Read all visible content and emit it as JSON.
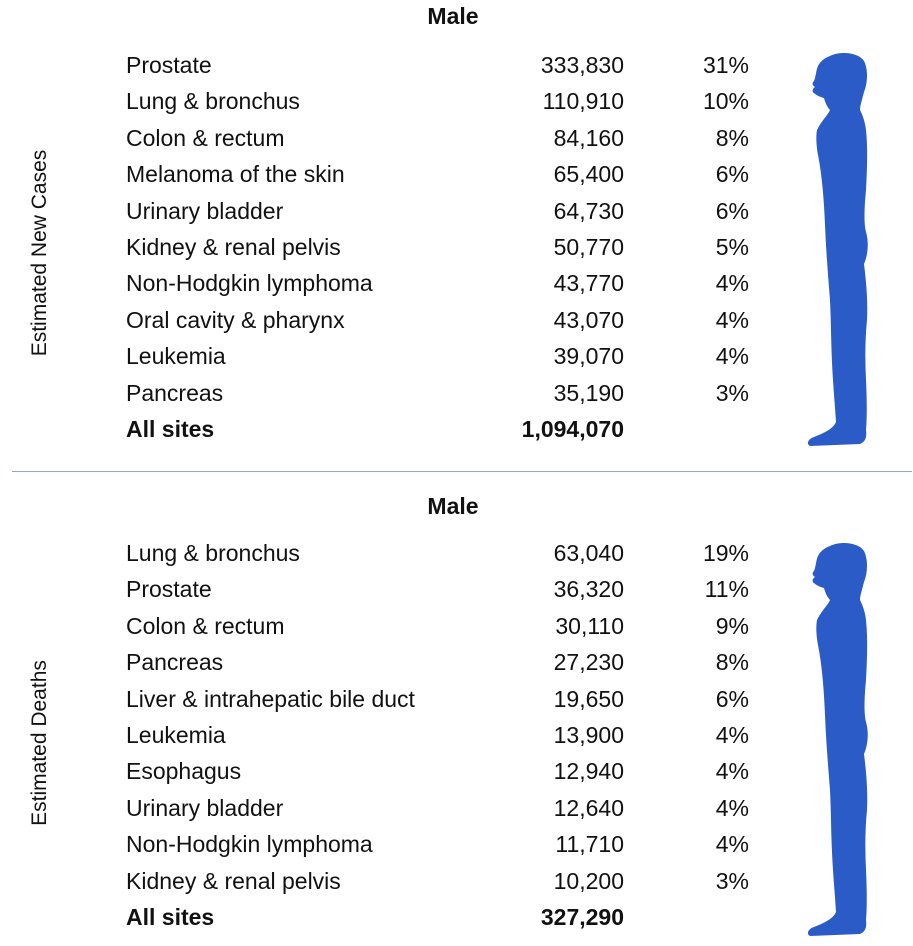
{
  "colors": {
    "figure": "#2a5bc6",
    "divider": "#8fa9d8",
    "text": "#111111"
  },
  "new_cases": {
    "side_label": "Estimated New Cases",
    "title": "Male",
    "rows": [
      {
        "site": "Prostate",
        "count": "333,830",
        "pct": "31%"
      },
      {
        "site": "Lung & bronchus",
        "count": "110,910",
        "pct": "10%"
      },
      {
        "site": "Colon & rectum",
        "count": "84,160",
        "pct": "8%"
      },
      {
        "site": "Melanoma of the skin",
        "count": "65,400",
        "pct": "6%"
      },
      {
        "site": "Urinary bladder",
        "count": "64,730",
        "pct": "6%"
      },
      {
        "site": "Kidney & renal pelvis",
        "count": "50,770",
        "pct": "5%"
      },
      {
        "site": "Non-Hodgkin lymphoma",
        "count": "43,770",
        "pct": "4%"
      },
      {
        "site": "Oral cavity & pharynx",
        "count": "43,070",
        "pct": "4%"
      },
      {
        "site": "Leukemia",
        "count": "39,070",
        "pct": "4%"
      },
      {
        "site": "Pancreas",
        "count": "35,190",
        "pct": "3%"
      }
    ],
    "total": {
      "site": "All sites",
      "count": "1,094,070"
    }
  },
  "deaths": {
    "side_label": "Estimated Deaths",
    "title": "Male",
    "rows": [
      {
        "site": "Lung & bronchus",
        "count": "63,040",
        "pct": "19%"
      },
      {
        "site": "Prostate",
        "count": "36,320",
        "pct": "11%"
      },
      {
        "site": "Colon & rectum",
        "count": "30,110",
        "pct": "9%"
      },
      {
        "site": "Pancreas",
        "count": "27,230",
        "pct": "8%"
      },
      {
        "site": "Liver & intrahepatic bile duct",
        "count": "19,650",
        "pct": "6%"
      },
      {
        "site": "Leukemia",
        "count": "13,900",
        "pct": "4%"
      },
      {
        "site": "Esophagus",
        "count": "12,940",
        "pct": "4%"
      },
      {
        "site": "Urinary bladder",
        "count": "12,640",
        "pct": "4%"
      },
      {
        "site": "Non-Hodgkin lymphoma",
        "count": "11,710",
        "pct": "4%"
      },
      {
        "site": "Kidney & renal pelvis",
        "count": "10,200",
        "pct": "3%"
      }
    ],
    "total": {
      "site": "All sites",
      "count": "327,290"
    }
  },
  "chart_data": [
    {
      "type": "table",
      "title": "Male",
      "ylabel": "Estimated New Cases",
      "categories": [
        "Prostate",
        "Lung & bronchus",
        "Colon & rectum",
        "Melanoma of the skin",
        "Urinary bladder",
        "Kidney & renal pelvis",
        "Non-Hodgkin lymphoma",
        "Oral cavity & pharynx",
        "Leukemia",
        "Pancreas"
      ],
      "series": [
        {
          "name": "Estimated new cases",
          "values": [
            333830,
            110910,
            84160,
            65400,
            64730,
            50770,
            43770,
            43070,
            39070,
            35190
          ]
        },
        {
          "name": "Percent",
          "values": [
            31,
            10,
            8,
            6,
            6,
            5,
            4,
            4,
            4,
            3
          ]
        }
      ],
      "total": 1094070
    },
    {
      "type": "table",
      "title": "Male",
      "ylabel": "Estimated Deaths",
      "categories": [
        "Lung & bronchus",
        "Prostate",
        "Colon & rectum",
        "Pancreas",
        "Liver & intrahepatic bile duct",
        "Leukemia",
        "Esophagus",
        "Urinary bladder",
        "Non-Hodgkin lymphoma",
        "Kidney & renal pelvis"
      ],
      "series": [
        {
          "name": "Estimated deaths",
          "values": [
            63040,
            36320,
            30110,
            27230,
            19650,
            13900,
            12940,
            12640,
            11710,
            10200
          ]
        },
        {
          "name": "Percent",
          "values": [
            19,
            11,
            9,
            8,
            6,
            4,
            4,
            4,
            4,
            3
          ]
        }
      ],
      "total": 327290
    }
  ]
}
